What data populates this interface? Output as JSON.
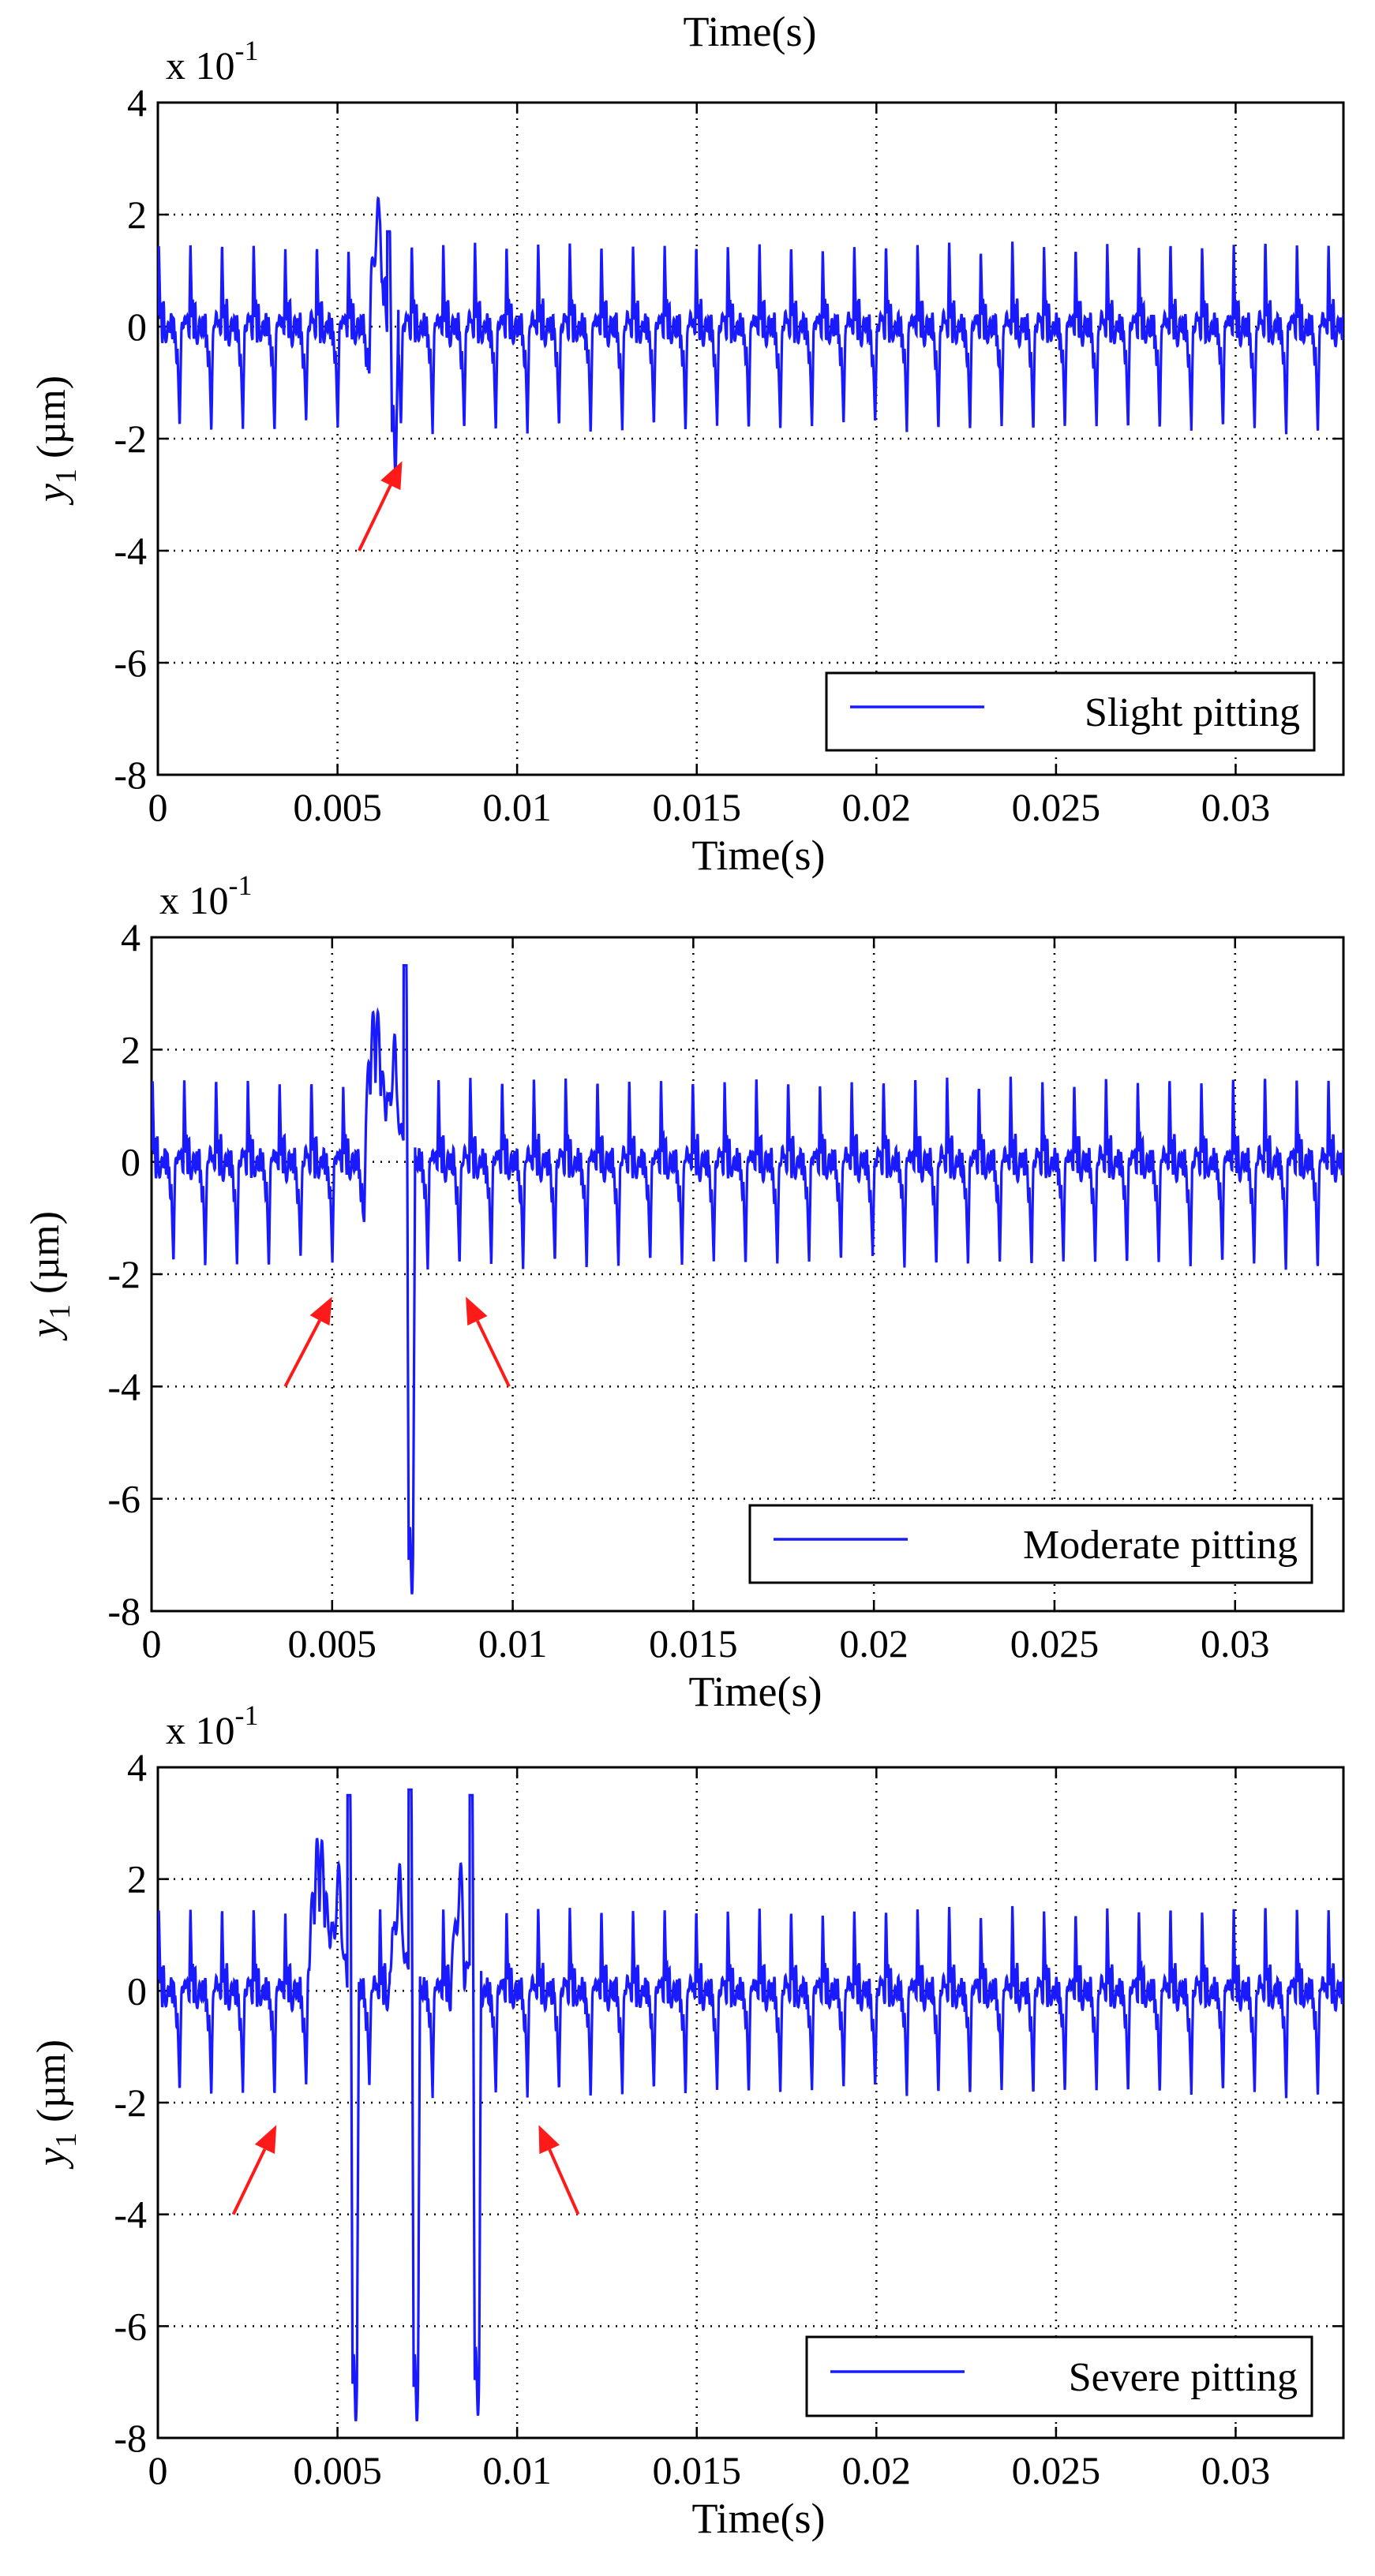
{
  "top_label": "Time(s)",
  "chart_data": [
    {
      "type": "line",
      "name": "slight",
      "xlabel": "Time(s)",
      "ylabel_main": "y",
      "ylabel_sub": "1",
      "ylabel_unit": " (µm)",
      "scale_base": "x 10",
      "scale_exp": "-1",
      "xlim": [
        0,
        0.033
      ],
      "ylim": [
        -8,
        4
      ],
      "xticks": [
        0,
        0.005,
        0.01,
        0.015,
        0.02,
        0.025,
        0.03
      ],
      "xtick_labels": [
        "0",
        "0.005",
        "0.01",
        "0.015",
        "0.02",
        "0.025",
        "0.03"
      ],
      "yticks": [
        -8,
        -6,
        -4,
        -2,
        0,
        2,
        4
      ],
      "ytick_labels": [
        "-8",
        "-6",
        "-4",
        "-2",
        "0",
        "2",
        "4"
      ],
      "grid": true,
      "legend": "Slight pitting",
      "legend_position": "bottom-right",
      "series_color": "#1a1aff",
      "signal": {
        "mesh_period_s": 0.00088,
        "peak_positive": 1.5,
        "peak_negative": -1.9,
        "fault_events": [
          {
            "t": 0.0063,
            "max": 1.7,
            "min": -2.0
          }
        ]
      },
      "annotations": [
        {
          "type": "arrow",
          "color": "#ff1a1a",
          "from": [
            0.0056,
            -4.0
          ],
          "to": [
            0.0068,
            -2.4
          ]
        }
      ]
    },
    {
      "type": "line",
      "name": "moderate",
      "xlabel": "Time(s)",
      "ylabel_main": "y",
      "ylabel_sub": "1",
      "ylabel_unit": " (µm)",
      "scale_base": "x 10",
      "scale_exp": "-1",
      "xlim": [
        0,
        0.033
      ],
      "ylim": [
        -8,
        4
      ],
      "xticks": [
        0,
        0.005,
        0.01,
        0.015,
        0.02,
        0.025,
        0.03
      ],
      "xtick_labels": [
        "0",
        "0.005",
        "0.01",
        "0.015",
        "0.02",
        "0.025",
        "0.03"
      ],
      "yticks": [
        -8,
        -6,
        -4,
        -2,
        0,
        2,
        4
      ],
      "ytick_labels": [
        "-8",
        "-6",
        "-4",
        "-2",
        "0",
        "2",
        "4"
      ],
      "grid": true,
      "legend": "Moderate pitting",
      "legend_position": "bottom-right",
      "series_color": "#1a1aff",
      "signal": {
        "mesh_period_s": 0.00088,
        "peak_positive": 1.5,
        "peak_negative": -1.9,
        "fault_events": [
          {
            "t": 0.0062,
            "max": 2.8,
            "min": 1.4
          },
          {
            "t": 0.0069,
            "max": 3.5,
            "min": -7.1
          }
        ]
      },
      "annotations": [
        {
          "type": "arrow",
          "color": "#ff1a1a",
          "from": [
            0.0037,
            -4.0
          ],
          "to": [
            0.005,
            -2.4
          ]
        },
        {
          "type": "arrow",
          "color": "#ff1a1a",
          "from": [
            0.0099,
            -4.0
          ],
          "to": [
            0.0087,
            -2.4
          ]
        }
      ]
    },
    {
      "type": "line",
      "name": "severe",
      "xlabel": "Time(s)",
      "ylabel_main": "y",
      "ylabel_sub": "1",
      "ylabel_unit": " (µm)",
      "scale_base": "x 10",
      "scale_exp": "-1",
      "xlim": [
        0,
        0.033
      ],
      "ylim": [
        -8,
        4
      ],
      "xticks": [
        0,
        0.005,
        0.01,
        0.015,
        0.02,
        0.025,
        0.03
      ],
      "xtick_labels": [
        "0",
        "0.005",
        "0.01",
        "0.015",
        "0.02",
        "0.025",
        "0.03"
      ],
      "yticks": [
        -8,
        -6,
        -4,
        -2,
        0,
        2,
        4
      ],
      "ytick_labels": [
        "-8",
        "-6",
        "-4",
        "-2",
        "0",
        "2",
        "4"
      ],
      "grid": true,
      "legend": "Severe pitting",
      "legend_position": "bottom-right",
      "series_color": "#1a1aff",
      "signal": {
        "mesh_period_s": 0.00088,
        "peak_positive": 1.5,
        "peak_negative": -1.9,
        "fault_events": [
          {
            "t": 0.0045,
            "max": 2.8,
            "min": 1.4
          },
          {
            "t": 0.0052,
            "max": 3.5,
            "min": -7.1
          },
          {
            "t": 0.0069,
            "max": 3.6,
            "min": -7.1
          },
          {
            "t": 0.0086,
            "max": 3.5,
            "min": -7.0
          }
        ]
      },
      "annotations": [
        {
          "type": "arrow",
          "color": "#ff1a1a",
          "from": [
            0.0021,
            -4.0
          ],
          "to": [
            0.0033,
            -2.4
          ]
        },
        {
          "type": "arrow",
          "color": "#ff1a1a",
          "from": [
            0.0117,
            -4.0
          ],
          "to": [
            0.0106,
            -2.4
          ]
        }
      ]
    }
  ]
}
